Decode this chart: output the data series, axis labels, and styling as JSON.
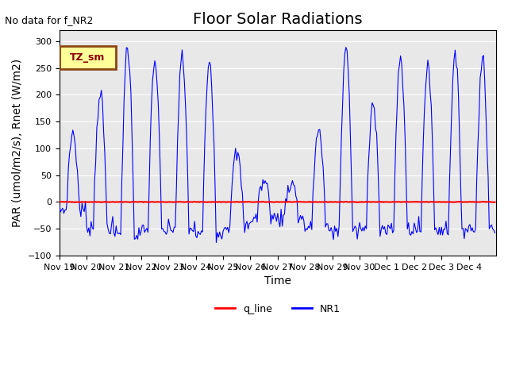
{
  "title": "Floor Solar Radiations",
  "top_left_text": "No data for f_NR2",
  "xlabel": "Time",
  "ylabel": "PAR (umol/m2/s), Rnet (W/m2)",
  "ylim": [
    -100,
    320
  ],
  "yticks": [
    -100,
    -50,
    0,
    50,
    100,
    150,
    200,
    250,
    300
  ],
  "xtick_labels": [
    "Nov 19",
    "Nov 20",
    "Nov 21",
    "Nov 22",
    "Nov 23",
    "Nov 24",
    "Nov 25",
    "Nov 26",
    "Nov 27",
    "Nov 28",
    "Nov 29",
    "Nov 30",
    "Dec 1",
    "Dec 2",
    "Dec 3",
    "Dec 4"
  ],
  "legend_box_label": "TZ_sm",
  "legend_box_facecolor": "#FFFF99",
  "legend_box_edgecolor": "#8B4513",
  "q_line_color": "#FF0000",
  "nr1_color": "#0000FF",
  "bg_color": "#E8E8E8",
  "title_fontsize": 14,
  "label_fontsize": 10,
  "tick_fontsize": 8,
  "legend_label_q": "q_line",
  "legend_label_nr1": "NR1",
  "peaks": [
    130,
    205,
    290,
    265,
    270,
    265,
    90,
    38,
    35,
    135,
    290,
    185,
    270,
    260,
    270,
    270
  ],
  "night_bases": [
    -15,
    -45,
    -60,
    -55,
    -50,
    -60,
    -45,
    -30,
    -30,
    -50,
    -55,
    -50,
    -50,
    -50,
    -50,
    -50
  ]
}
